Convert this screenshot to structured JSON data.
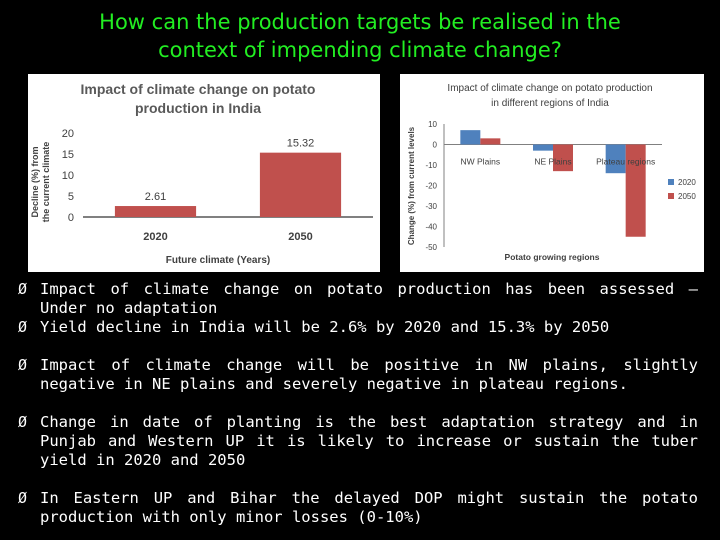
{
  "slide": {
    "title_line1": "How can the production targets be realised in the",
    "title_line2": "context of impending climate change?"
  },
  "bullets": [
    "Impact of climate change on potato production has been assessed – Under no adaptation",
    "Yield decline in India will be 2.6% by 2020 and 15.3% by 2050",
    "Impact of climate change will be positive in NW plains, slightly negative in NE plains and severely negative in plateau regions.",
    "Change in date of planting is the best adaptation strategy and in Punjab and Western UP it is likely to increase or sustain the tuber yield in 2020 and 2050",
    "In Eastern UP and Bihar the delayed DOP might sustain the potato production with only minor losses (0-10%)"
  ],
  "bullet_glyph": "Ø",
  "chart_data": [
    {
      "type": "bar",
      "title_line1": "Impact of climate change on potato",
      "title_line2": "production in India",
      "xlabel": "Future climate (Years)",
      "ylabel_line1": "Decline (%) from",
      "ylabel_line2": "the current climate",
      "categories": [
        "2020",
        "2050"
      ],
      "values": [
        2.61,
        15.32
      ],
      "value_labels": [
        "2.61",
        "15.32"
      ],
      "ylim": [
        0,
        20
      ],
      "yticks": [
        0,
        5,
        10,
        15,
        20
      ],
      "bar_color": "#c0504d",
      "grid": false,
      "legend": "none"
    },
    {
      "type": "bar",
      "title_line1": "Impact of climate change on potato production",
      "title_line2": "in different regions of India",
      "xlabel": "Potato growing regions",
      "ylabel": "Change (%) from current levels",
      "categories": [
        "NW Plains",
        "NE Plains",
        "Plateau regions"
      ],
      "ylim": [
        -50,
        10
      ],
      "yticks": [
        10,
        0,
        -10,
        -20,
        -30,
        -40,
        -50
      ],
      "series": [
        {
          "name": "2020",
          "values": [
            7,
            -3,
            -14
          ],
          "color": "#4f81bd"
        },
        {
          "name": "2050",
          "values": [
            3,
            -13,
            -45
          ],
          "color": "#c0504d"
        }
      ],
      "grid": false,
      "legend": "right"
    }
  ]
}
